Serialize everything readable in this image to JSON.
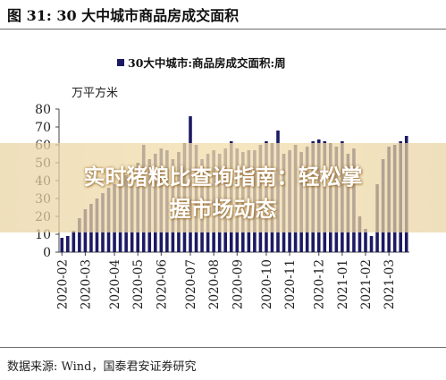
{
  "figure": {
    "title": "图 31:  30 大中城市商品房成交面积",
    "source": "数据来源:  Wind，国泰君安证券研究"
  },
  "overlay": {
    "line1": "实时猪粮比查询指南：轻松掌",
    "line2": "握市场动态"
  },
  "colors": {
    "bar": "#1c1a63",
    "axis": "#444444",
    "text": "#222222"
  },
  "chart_data": {
    "type": "bar",
    "legend": "30大中城市:商品房成交面积:周",
    "legend_position": "top-center",
    "ylabel": "万平方米",
    "ylim": [
      0,
      80
    ],
    "yticks": [
      0,
      10,
      20,
      30,
      40,
      50,
      60,
      70,
      80
    ],
    "grid": false,
    "xtick_labels": [
      "2020-02",
      "2020-03",
      "2020-04",
      "2020-05",
      "2020-06",
      "2020-07",
      "2020-08",
      "2020-09",
      "2020-10",
      "2020-11",
      "2020-12",
      "2021-01",
      "2021-02",
      "2021-03"
    ],
    "xtick_bar_index": [
      0,
      4,
      9,
      13,
      17,
      22,
      26,
      30,
      35,
      39,
      44,
      48,
      52,
      56
    ],
    "values": [
      8,
      9,
      12,
      19,
      24,
      27,
      30,
      33,
      36,
      38,
      40,
      43,
      45,
      50,
      60,
      52,
      55,
      58,
      57,
      52,
      56,
      61,
      76,
      60,
      52,
      55,
      57,
      55,
      58,
      62,
      58,
      56,
      57,
      57,
      60,
      62,
      61,
      68,
      55,
      57,
      60,
      56,
      59,
      62,
      63,
      62,
      61,
      59,
      62,
      55,
      58,
      20,
      13,
      9,
      38,
      52,
      59,
      60,
      62,
      65
    ]
  }
}
